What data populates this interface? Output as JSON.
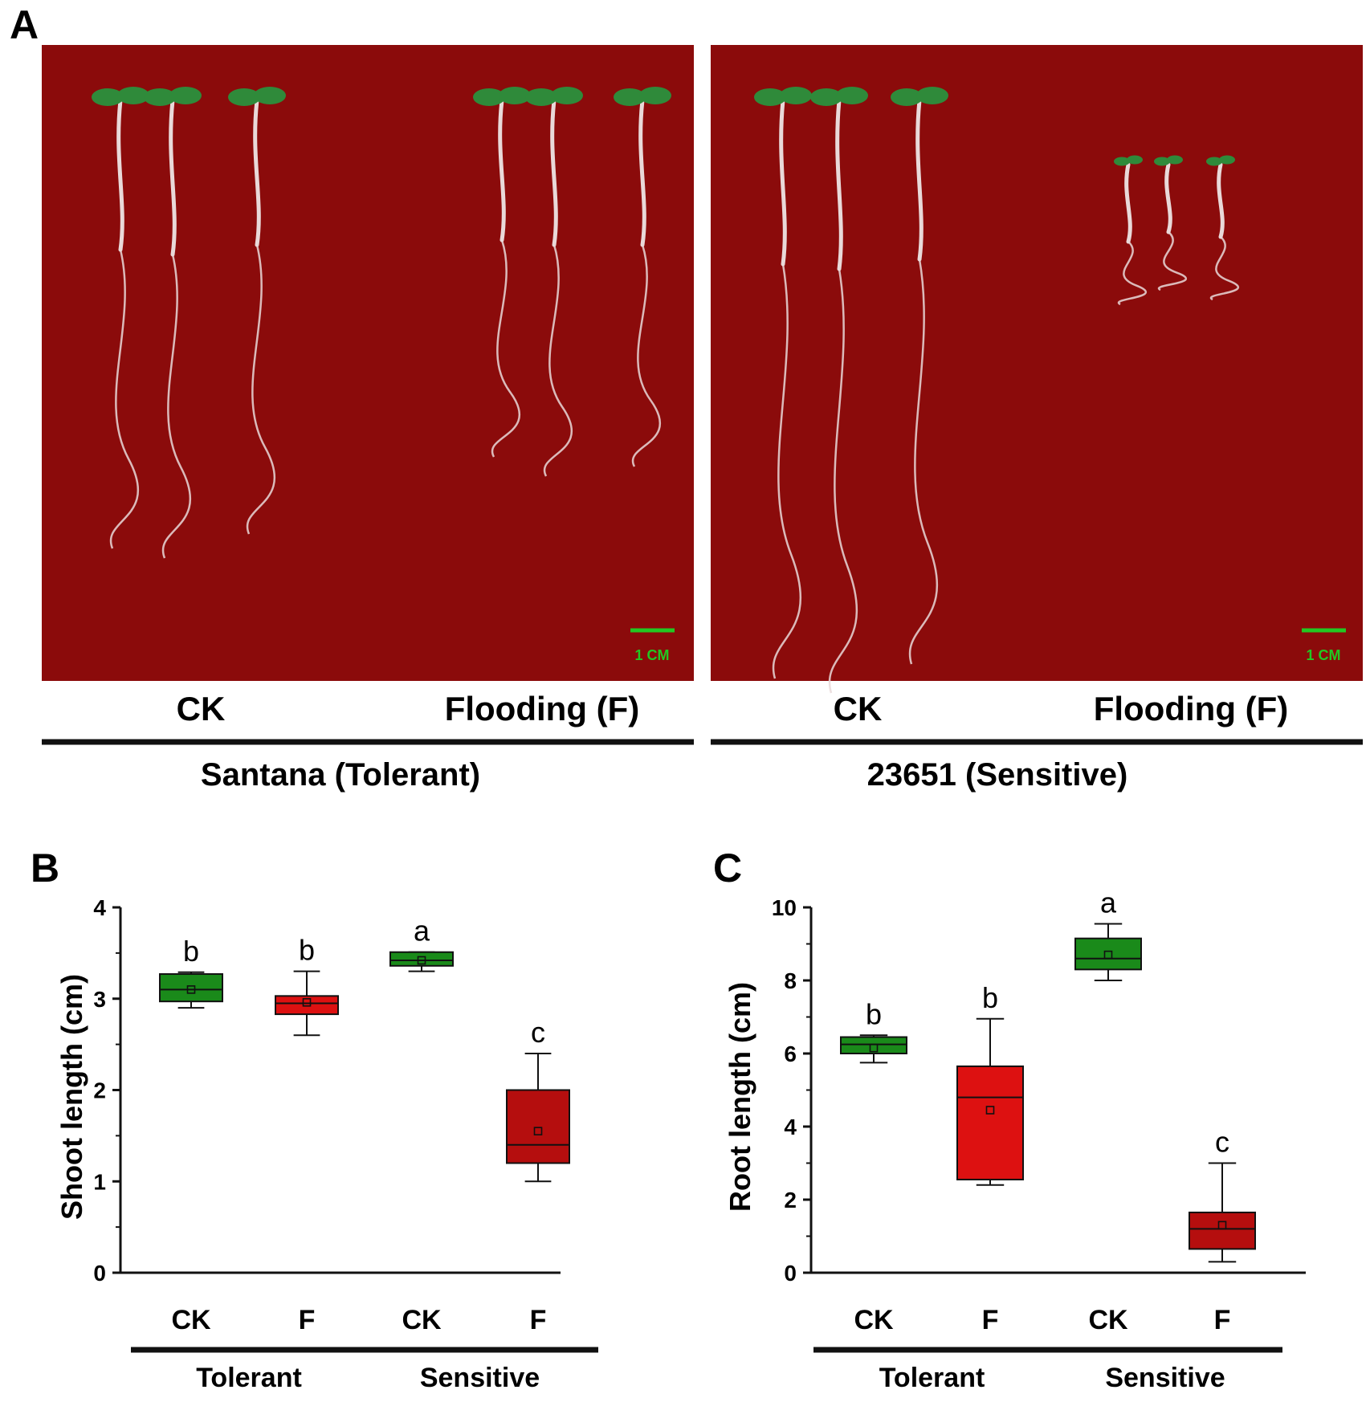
{
  "panel_a": {
    "letter": "A",
    "colors": {
      "background": "#8b0b0b",
      "leaf": "#2f8a3a",
      "stem": "#e9d9d9",
      "scale_bar": "#22c822"
    },
    "photos": [
      {
        "name": "tolerant",
        "scale_bar_label": "1 CM",
        "condition_labels": [
          "CK",
          "Flooding (F)"
        ],
        "genotype_label": "Santana (Tolerant)",
        "seedlings": [
          {
            "group": "CK",
            "shoot_cm": 3.1,
            "root_cm": 6.2
          },
          {
            "group": "CK",
            "shoot_cm": 3.2,
            "root_cm": 6.3
          },
          {
            "group": "CK",
            "shoot_cm": 3.0,
            "root_cm": 6.0
          },
          {
            "group": "F",
            "shoot_cm": 2.9,
            "root_cm": 4.5
          },
          {
            "group": "F",
            "shoot_cm": 3.0,
            "root_cm": 4.8
          },
          {
            "group": "F",
            "shoot_cm": 3.0,
            "root_cm": 4.6
          }
        ]
      },
      {
        "name": "sensitive",
        "scale_bar_label": "1 CM",
        "condition_labels": [
          "CK",
          "Flooding (F)"
        ],
        "genotype_label": "23651 (Sensitive)",
        "seedlings": [
          {
            "group": "CK",
            "shoot_cm": 3.4,
            "root_cm": 8.6
          },
          {
            "group": "CK",
            "shoot_cm": 3.5,
            "root_cm": 8.8
          },
          {
            "group": "CK",
            "shoot_cm": 3.3,
            "root_cm": 8.4
          },
          {
            "group": "F",
            "shoot_cm": 1.6,
            "root_cm": 1.3
          },
          {
            "group": "F",
            "shoot_cm": 1.4,
            "root_cm": 1.2
          },
          {
            "group": "F",
            "shoot_cm": 1.5,
            "root_cm": 1.3
          }
        ]
      }
    ]
  },
  "chart_data": [
    {
      "type": "box",
      "panel_letter": "B",
      "xlabel": "",
      "ylabel": "Shoot length (cm)",
      "ylim": [
        0,
        4
      ],
      "yticks": [
        "0",
        "1",
        "2",
        "3",
        "4"
      ],
      "grid": false,
      "categories": [
        "CK",
        "F",
        "CK",
        "F"
      ],
      "groups": [
        {
          "label": "Tolerant",
          "categories": [
            0,
            1
          ]
        },
        {
          "label": "Sensitive",
          "categories": [
            2,
            3
          ]
        }
      ],
      "boxes": [
        {
          "category": "CK",
          "color": "#1a8a1a",
          "min": 2.9,
          "q1": 2.97,
          "median": 3.1,
          "q3": 3.27,
          "max": 3.29,
          "mean": 3.1,
          "letter": "b"
        },
        {
          "category": "F",
          "color": "#dd1111",
          "min": 2.6,
          "q1": 2.83,
          "median": 2.95,
          "q3": 3.03,
          "max": 3.3,
          "mean": 2.96,
          "letter": "b"
        },
        {
          "category": "CK",
          "color": "#1a8a1a",
          "min": 3.3,
          "q1": 3.36,
          "median": 3.42,
          "q3": 3.51,
          "max": 3.51,
          "mean": 3.42,
          "letter": "a"
        },
        {
          "category": "F",
          "color": "#b50e0e",
          "min": 1.0,
          "q1": 1.2,
          "median": 1.4,
          "q3": 2.0,
          "max": 2.4,
          "mean": 1.55,
          "letter": "c"
        }
      ]
    },
    {
      "type": "box",
      "panel_letter": "C",
      "xlabel": "",
      "ylabel": "Root length (cm)",
      "ylim": [
        0,
        10
      ],
      "yticks": [
        "0",
        "2",
        "4",
        "6",
        "8",
        "10"
      ],
      "grid": false,
      "categories": [
        "CK",
        "F",
        "CK",
        "F"
      ],
      "groups": [
        {
          "label": "Tolerant",
          "categories": [
            0,
            1
          ]
        },
        {
          "label": "Sensitive",
          "categories": [
            2,
            3
          ]
        }
      ],
      "boxes": [
        {
          "category": "CK",
          "color": "#1a8a1a",
          "min": 5.75,
          "q1": 6.0,
          "median": 6.25,
          "q3": 6.45,
          "max": 6.5,
          "mean": 6.15,
          "letter": "b"
        },
        {
          "category": "F",
          "color": "#dd1111",
          "min": 2.4,
          "q1": 2.55,
          "median": 4.8,
          "q3": 5.65,
          "max": 6.95,
          "mean": 4.45,
          "letter": "b"
        },
        {
          "category": "CK",
          "color": "#1a8a1a",
          "min": 8.0,
          "q1": 8.3,
          "median": 8.6,
          "q3": 9.15,
          "max": 9.55,
          "mean": 8.7,
          "letter": "a"
        },
        {
          "category": "F",
          "color": "#b50e0e",
          "min": 0.3,
          "q1": 0.65,
          "median": 1.2,
          "q3": 1.65,
          "max": 3.0,
          "mean": 1.3,
          "letter": "c"
        }
      ]
    }
  ]
}
